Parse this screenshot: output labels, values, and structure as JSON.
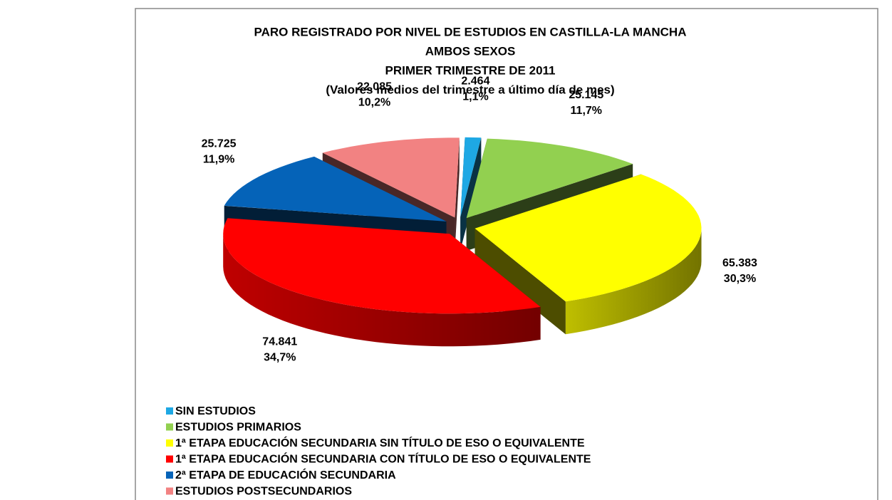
{
  "chart_data": {
    "type": "pie",
    "title": [
      "PARO REGISTRADO POR NIVEL DE ESTUDIOS EN CASTILLA-LA MANCHA",
      "AMBOS SEXOS",
      "PRIMER TRIMESTRE DE 2011",
      "(Valores medios del trimestre a último día de mes)"
    ],
    "categories": [
      "SIN ESTUDIOS",
      "ESTUDIOS PRIMARIOS",
      "1ª ETAPA EDUCACIÓN SECUNDARIA SIN TÍTULO DE ESO O EQUIVALENTE",
      "1ª ETAPA EDUCACIÓN SECUNDARIA CON TÍTULO DE ESO O EQUIVALENTE",
      "2ª ETAPA DE EDUCACIÓN SECUNDARIA",
      "ESTUDIOS POSTSECUNDARIOS"
    ],
    "values": [
      2464,
      25145,
      65383,
      74841,
      25725,
      22085
    ],
    "value_labels": [
      "2.464",
      "25.145",
      "65.383",
      "74.841",
      "25.725",
      "22.085"
    ],
    "percent_labels": [
      "1,1%",
      "11,7%",
      "30,3%",
      "34,7%",
      "11,9%",
      "10,2%"
    ],
    "colors": [
      "#1ea8e4",
      "#92d050",
      "#ffff00",
      "#ff0000",
      "#0563b8",
      "#f28282"
    ],
    "legend": "bottom-left"
  }
}
